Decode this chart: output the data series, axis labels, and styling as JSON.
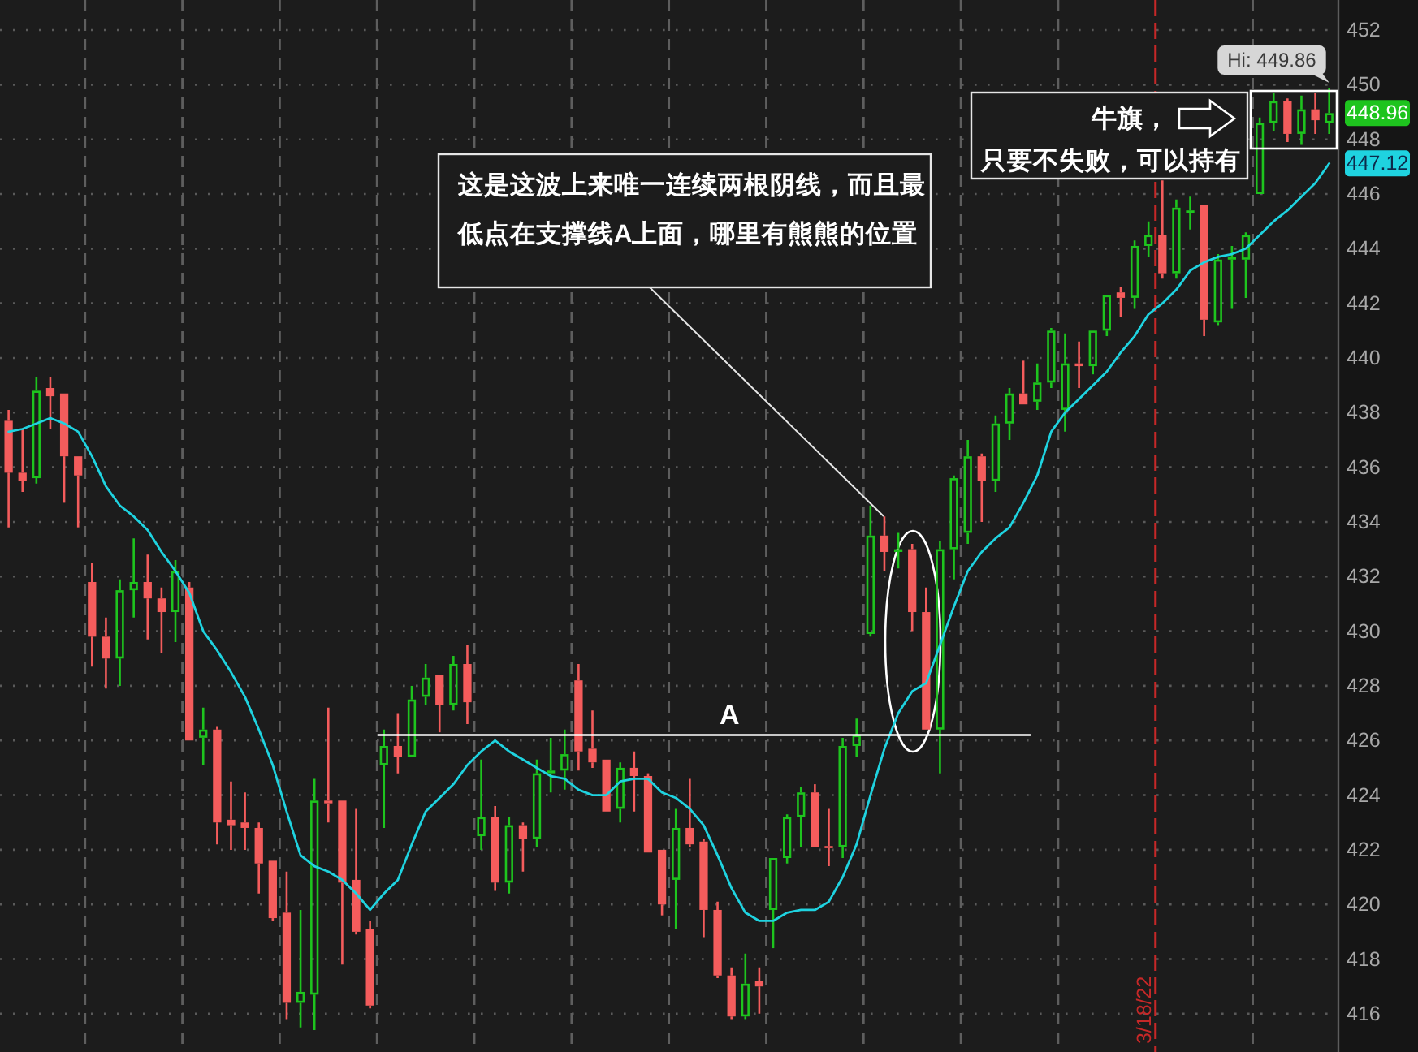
{
  "chart_data": {
    "type": "candlestick",
    "categories": [
      null,
      null,
      null,
      null,
      null,
      null,
      null,
      null,
      null,
      null,
      null,
      null,
      null,
      null,
      null,
      null,
      null,
      null,
      null,
      null,
      null,
      null,
      null,
      null,
      null,
      null,
      null,
      null,
      null,
      null,
      null,
      null,
      null,
      null,
      null,
      null,
      null,
      null,
      null,
      null,
      null,
      null,
      null,
      null,
      null,
      null,
      null,
      null,
      null,
      null,
      null,
      null,
      null,
      null,
      null,
      null,
      null,
      null,
      null,
      null,
      null,
      null,
      null,
      null,
      null,
      null,
      null,
      null,
      null,
      null,
      null,
      null,
      null,
      null,
      null,
      null,
      null,
      null,
      null,
      null,
      null,
      null,
      "3/18/22",
      null,
      null,
      null,
      null,
      null,
      null,
      null,
      null,
      null,
      null,
      null,
      null,
      null
    ],
    "ohlc": [
      [
        437.7,
        438.1,
        433.8,
        435.8
      ],
      [
        435.8,
        437.4,
        435.1,
        435.5
      ],
      [
        435.6,
        439.3,
        435.4,
        438.8
      ],
      [
        438.9,
        439.3,
        437.4,
        438.6
      ],
      [
        438.7,
        438.7,
        434.7,
        436.4
      ],
      [
        436.4,
        436.4,
        433.8,
        435.7
      ],
      [
        431.8,
        432.5,
        428.7,
        429.8
      ],
      [
        429.8,
        430.5,
        427.9,
        429.0
      ],
      [
        429.0,
        431.9,
        428.0,
        431.5
      ],
      [
        431.5,
        433.4,
        430.5,
        431.8
      ],
      [
        431.8,
        432.8,
        429.7,
        431.2
      ],
      [
        431.2,
        431.6,
        429.2,
        430.7
      ],
      [
        430.7,
        432.6,
        429.6,
        432.2
      ],
      [
        431.6,
        431.8,
        426.0,
        426.0
      ],
      [
        426.1,
        427.2,
        425.1,
        426.4
      ],
      [
        426.4,
        426.5,
        422.2,
        423.0
      ],
      [
        423.1,
        424.5,
        422.0,
        422.9
      ],
      [
        423.0,
        424.1,
        422.0,
        422.8
      ],
      [
        422.8,
        423.0,
        420.4,
        421.5
      ],
      [
        421.6,
        421.6,
        419.4,
        419.5
      ],
      [
        419.7,
        421.2,
        415.8,
        416.4
      ],
      [
        416.4,
        419.8,
        415.5,
        416.8
      ],
      [
        416.7,
        424.6,
        415.4,
        423.8
      ],
      [
        423.8,
        427.2,
        423.0,
        423.7
      ],
      [
        423.8,
        423.8,
        417.8,
        420.8
      ],
      [
        420.9,
        423.5,
        418.9,
        419.0
      ],
      [
        419.1,
        419.4,
        416.2,
        416.3
      ],
      [
        425.1,
        426.4,
        422.8,
        425.8
      ],
      [
        425.8,
        427.0,
        424.8,
        425.4
      ],
      [
        425.4,
        428.0,
        425.4,
        427.5
      ],
      [
        427.6,
        428.8,
        427.3,
        428.3
      ],
      [
        428.4,
        428.4,
        426.3,
        427.3
      ],
      [
        427.3,
        429.1,
        427.1,
        428.8
      ],
      [
        428.8,
        429.5,
        426.6,
        427.4
      ],
      [
        422.5,
        425.3,
        422.0,
        423.2
      ],
      [
        423.2,
        423.6,
        420.5,
        420.8
      ],
      [
        420.8,
        423.2,
        420.4,
        422.9
      ],
      [
        422.9,
        423.0,
        421.2,
        422.4
      ],
      [
        422.4,
        425.3,
        422.1,
        424.8
      ],
      [
        424.8,
        426.1,
        424.1,
        424.9
      ],
      [
        424.9,
        426.4,
        424.2,
        425.5
      ],
      [
        428.2,
        428.8,
        424.9,
        425.6
      ],
      [
        425.7,
        427.1,
        425.0,
        425.2
      ],
      [
        425.3,
        425.3,
        423.4,
        423.4
      ],
      [
        423.5,
        425.2,
        423.0,
        425.0
      ],
      [
        425.0,
        425.6,
        423.4,
        424.7
      ],
      [
        424.7,
        424.8,
        421.9,
        421.9
      ],
      [
        422.0,
        422.0,
        419.6,
        420.0
      ],
      [
        420.9,
        423.5,
        419.1,
        422.8
      ],
      [
        422.8,
        424.6,
        422.1,
        422.2
      ],
      [
        422.3,
        422.4,
        418.8,
        419.8
      ],
      [
        419.8,
        420.1,
        417.3,
        417.4
      ],
      [
        417.4,
        417.7,
        415.8,
        415.9
      ],
      [
        415.9,
        418.2,
        415.8,
        417.1
      ],
      [
        417.2,
        417.7,
        416.0,
        417.0
      ],
      [
        419.8,
        421.7,
        418.4,
        421.7
      ],
      [
        421.7,
        423.3,
        421.5,
        423.2
      ],
      [
        423.2,
        424.3,
        422.1,
        424.1
      ],
      [
        424.1,
        424.4,
        422.1,
        422.1
      ],
      [
        422.1,
        423.5,
        421.4,
        422.1
      ],
      [
        422.1,
        426.1,
        421.7,
        425.8
      ],
      [
        425.8,
        426.8,
        425.4,
        426.2
      ],
      [
        429.9,
        434.6,
        429.8,
        433.5
      ],
      [
        433.5,
        434.2,
        432.2,
        432.9
      ],
      [
        432.9,
        433.6,
        432.3,
        433.0
      ],
      [
        433.0,
        433.2,
        430.0,
        430.7
      ],
      [
        430.7,
        431.6,
        426.4,
        426.4
      ],
      [
        426.4,
        433.3,
        424.8,
        433.0
      ],
      [
        433.0,
        435.7,
        431.9,
        435.6
      ],
      [
        433.6,
        437.0,
        433.2,
        436.4
      ],
      [
        436.4,
        436.5,
        434.0,
        435.5
      ],
      [
        435.5,
        437.9,
        435.1,
        437.6
      ],
      [
        437.6,
        438.9,
        437.0,
        438.7
      ],
      [
        438.7,
        439.9,
        438.3,
        438.3
      ],
      [
        438.4,
        439.8,
        438.1,
        439.1
      ],
      [
        439.1,
        441.1,
        438.9,
        441.0
      ],
      [
        438.1,
        440.9,
        437.3,
        439.8
      ],
      [
        439.8,
        440.6,
        438.9,
        439.7
      ],
      [
        439.7,
        441.0,
        439.4,
        441.0
      ],
      [
        441.0,
        442.3,
        440.8,
        442.3
      ],
      [
        442.4,
        442.6,
        441.5,
        442.2
      ],
      [
        442.2,
        444.3,
        441.8,
        444.1
      ],
      [
        444.1,
        445.0,
        443.7,
        444.5
      ],
      [
        444.5,
        446.5,
        442.9,
        443.1
      ],
      [
        443.1,
        445.8,
        442.9,
        445.5
      ],
      [
        445.3,
        445.9,
        444.7,
        445.4
      ],
      [
        445.6,
        445.6,
        440.8,
        441.4
      ],
      [
        441.3,
        443.8,
        441.2,
        443.6
      ],
      [
        443.6,
        444.1,
        441.8,
        443.7
      ],
      [
        443.6,
        444.6,
        442.2,
        444.5
      ],
      [
        446.0,
        448.8,
        446.0,
        448.6
      ],
      [
        448.6,
        449.7,
        448.3,
        449.4
      ],
      [
        449.4,
        449.5,
        447.9,
        448.2
      ],
      [
        448.2,
        449.6,
        447.8,
        449.1
      ],
      [
        449.1,
        449.7,
        448.2,
        448.7
      ],
      [
        448.6,
        449.86,
        448.2,
        448.96
      ]
    ],
    "colors": [
      "#f45c5c",
      "#f45c5c",
      "#1ec41e",
      "#f45c5c",
      "#f45c5c",
      "#f45c5c",
      "#f45c5c",
      "#f45c5c",
      "#1ec41e",
      "#1ec41e",
      "#f45c5c",
      "#f45c5c",
      "#1ec41e",
      "#f45c5c",
      "#1ec41e",
      "#f45c5c",
      "#f45c5c",
      "#f45c5c",
      "#f45c5c",
      "#f45c5c",
      "#f45c5c",
      "#1ec41e",
      "#1ec41e",
      "#f45c5c",
      "#f45c5c",
      "#f45c5c",
      "#f45c5c",
      "#1ec41e",
      "#f45c5c",
      "#1ec41e",
      "#1ec41e",
      "#f45c5c",
      "#1ec41e",
      "#f45c5c",
      "#1ec41e",
      "#f45c5c",
      "#1ec41e",
      "#f45c5c",
      "#1ec41e",
      "#1ec41e",
      "#1ec41e",
      "#f45c5c",
      "#f45c5c",
      "#f45c5c",
      "#1ec41e",
      "#f45c5c",
      "#f45c5c",
      "#f45c5c",
      "#1ec41e",
      "#f45c5c",
      "#f45c5c",
      "#f45c5c",
      "#f45c5c",
      "#1ec41e",
      "#f45c5c",
      "#1ec41e",
      "#1ec41e",
      "#1ec41e",
      "#f45c5c",
      "#f45c5c",
      "#1ec41e",
      "#1ec41e",
      "#1ec41e",
      "#f45c5c",
      "#1ec41e",
      "#f45c5c",
      "#f45c5c",
      "#1ec41e",
      "#1ec41e",
      "#1ec41e",
      "#f45c5c",
      "#1ec41e",
      "#1ec41e",
      "#f45c5c",
      "#1ec41e",
      "#1ec41e",
      "#1ec41e",
      "#f45c5c",
      "#1ec41e",
      "#1ec41e",
      "#f45c5c",
      "#1ec41e",
      "#1ec41e",
      "#f45c5c",
      "#1ec41e",
      "#1ec41e",
      "#f45c5c",
      "#1ec41e",
      "#1ec41e",
      "#1ec41e",
      "#1ec41e",
      "#1ec41e",
      "#f45c5c",
      "#1ec41e",
      "#f45c5c",
      "#1ec41e"
    ],
    "value_labels": [
      null,
      null,
      null,
      null,
      null,
      null,
      null,
      null,
      null,
      null,
      null,
      null,
      null,
      null,
      null,
      null,
      null,
      null,
      null,
      null,
      null,
      null,
      null,
      null,
      null,
      null,
      null,
      null,
      null,
      null,
      null,
      null,
      null,
      null,
      null,
      null,
      null,
      null,
      null,
      null,
      null,
      null,
      null,
      null,
      null,
      null,
      null,
      null,
      null,
      null,
      null,
      null,
      null,
      null,
      null,
      null,
      null,
      null,
      null,
      null,
      null,
      null,
      null,
      null,
      null,
      null,
      null,
      null,
      null,
      null,
      null,
      null,
      null,
      null,
      null,
      null,
      null,
      null,
      null,
      null,
      null,
      null,
      null,
      null,
      null,
      null,
      null,
      null,
      null,
      null,
      null,
      null,
      null,
      null,
      null,
      "448.96"
    ],
    "series": [
      {
        "type": "line",
        "color": "#1fd3e0",
        "values": [
          437.3,
          437.4,
          437.6,
          437.8,
          437.6,
          437.3,
          436.4,
          435.3,
          434.6,
          434.2,
          433.7,
          432.9,
          432.2,
          431.4,
          430.0,
          429.3,
          428.5,
          427.6,
          426.4,
          425.1,
          423.4,
          421.8,
          421.4,
          421.2,
          420.9,
          420.4,
          419.8,
          420.4,
          420.9,
          422.2,
          423.4,
          423.9,
          424.4,
          425.1,
          425.6,
          426.0,
          425.6,
          425.3,
          425.0,
          424.7,
          424.6,
          424.2,
          424.0,
          424.0,
          424.5,
          424.6,
          424.6,
          424.1,
          423.9,
          423.5,
          422.9,
          421.8,
          420.6,
          419.7,
          419.4,
          419.4,
          419.7,
          419.8,
          419.8,
          420.1,
          421.0,
          422.2,
          424.0,
          425.7,
          427.0,
          427.8,
          428.1,
          429.5,
          430.9,
          432.2,
          432.9,
          433.4,
          433.8,
          434.7,
          435.7,
          437.3,
          438.0,
          438.5,
          439.0,
          439.5,
          440.2,
          440.8,
          441.6,
          442.0,
          442.5,
          443.2,
          443.5,
          443.7,
          443.8,
          444.0,
          444.5,
          445.0,
          445.4,
          445.9,
          446.4,
          447.12
        ],
        "value_labels": [
          null,
          null,
          null,
          null,
          null,
          null,
          null,
          null,
          null,
          null,
          null,
          null,
          null,
          null,
          null,
          null,
          null,
          null,
          null,
          null,
          null,
          null,
          null,
          null,
          null,
          null,
          null,
          null,
          null,
          null,
          null,
          null,
          null,
          null,
          null,
          null,
          null,
          null,
          null,
          null,
          null,
          null,
          null,
          null,
          null,
          null,
          null,
          null,
          null,
          null,
          null,
          null,
          null,
          null,
          null,
          null,
          null,
          null,
          null,
          null,
          null,
          null,
          null,
          null,
          null,
          null,
          null,
          null,
          null,
          null,
          null,
          null,
          null,
          null,
          null,
          null,
          null,
          null,
          null,
          null,
          null,
          null,
          null,
          null,
          null,
          null,
          null,
          null,
          null,
          null,
          null,
          null,
          null,
          null,
          null,
          "447.12"
        ]
      }
    ],
    "ylim": [
      414.6,
      453.1
    ],
    "yticks": [
      416,
      418,
      420,
      422,
      424,
      426,
      428,
      430,
      432,
      434,
      436,
      438,
      440,
      442,
      444,
      446,
      448,
      450,
      452
    ],
    "grid": "y",
    "ref_lines": [
      {
        "axis": "y",
        "value": 426.2,
        "label": "A",
        "color": "#ffffff"
      },
      {
        "axis": "x",
        "value": "3/18/22",
        "color": "#c62828",
        "line_style": "dashed"
      }
    ],
    "annotations": [
      {
        "text": "Hi: 449.86",
        "y": 449.86
      },
      "这是这波上来唯一连续两根阴线，而且最低点在支撑线A上面，哪里有熊熊的位置",
      "牛旗，只要不失败，可以持有"
    ]
  }
}
